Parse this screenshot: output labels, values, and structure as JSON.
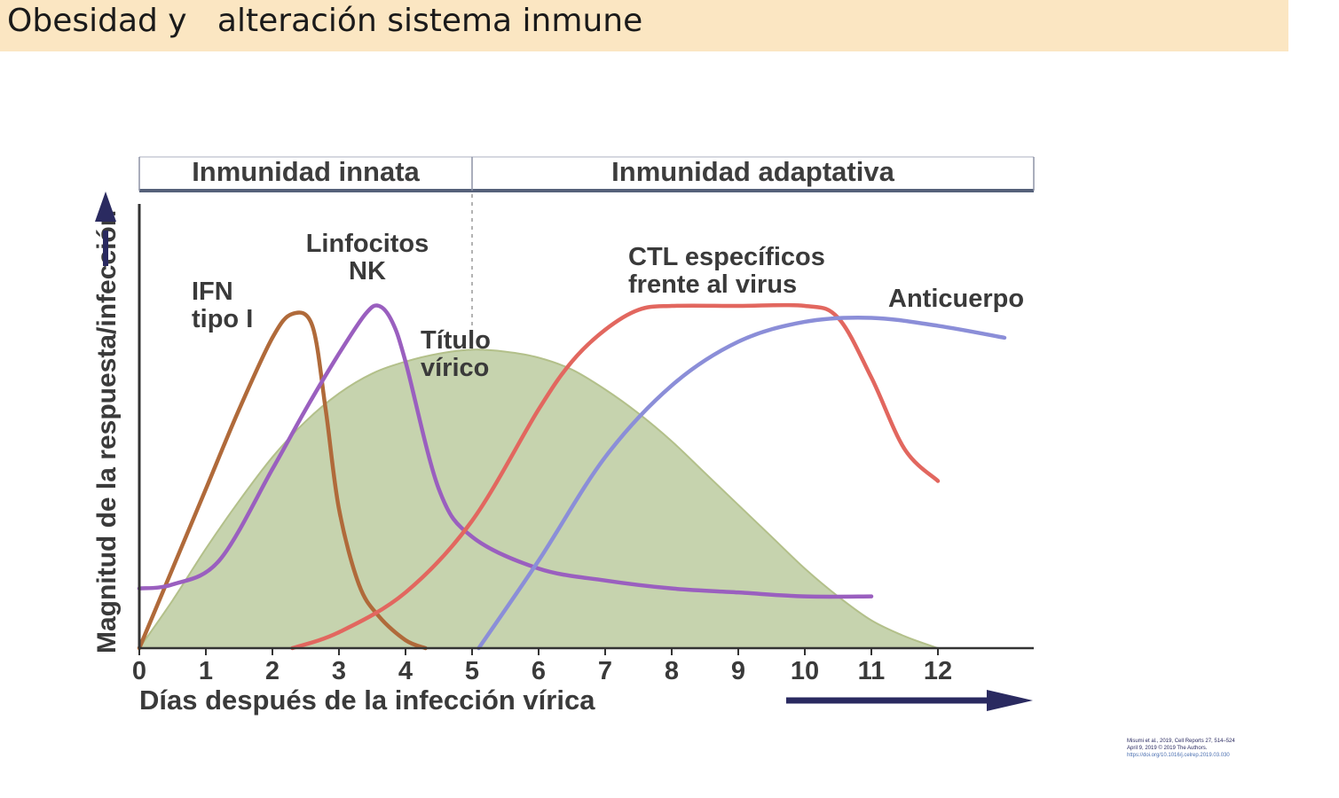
{
  "slide": {
    "title": "Obesidad y   alteración sistema inmune"
  },
  "citation": {
    "line1": "Misumi et al., 2019, Cell Reports 27, 514–524",
    "line2": "April 9, 2019 © 2019 The Authors.",
    "line3": "https://doi.org/10.1016/j.celrep.2019.03.030"
  },
  "chart_data": {
    "type": "line",
    "title": "",
    "xlabel": "Días después de la infección vírica",
    "ylabel": "Magnitud de la respuesta/infección",
    "xlim": [
      0,
      13.5
    ],
    "ylim": [
      0,
      1
    ],
    "x_ticks": [
      0,
      1,
      2,
      3,
      4,
      5,
      6,
      7,
      8,
      9,
      10,
      11,
      12
    ],
    "phases": [
      {
        "label": "Inmunidad innata",
        "from": 0,
        "to": 5
      },
      {
        "label": "Inmunidad adaptativa",
        "from": 5,
        "to": 13.5
      }
    ],
    "divider_x": 5,
    "series": [
      {
        "name": "Título vírico",
        "label_lines": [
          "Título",
          "vírico"
        ],
        "style": "area",
        "color": "#c6d3ae",
        "stroke": "#b3c08a",
        "x": [
          0,
          0.5,
          1,
          1.5,
          2,
          2.5,
          3,
          3.5,
          4,
          4.5,
          5,
          5.5,
          6,
          6.5,
          7,
          7.5,
          8,
          8.5,
          9,
          9.5,
          10,
          10.5,
          11,
          11.5,
          12
        ],
        "values": [
          0,
          0.12,
          0.25,
          0.37,
          0.48,
          0.57,
          0.64,
          0.69,
          0.72,
          0.74,
          0.75,
          0.745,
          0.73,
          0.7,
          0.65,
          0.59,
          0.52,
          0.44,
          0.36,
          0.28,
          0.2,
          0.13,
          0.07,
          0.03,
          0
        ]
      },
      {
        "name": "IFN tipo I",
        "label_lines": [
          "IFN",
          "tipo I"
        ],
        "style": "line",
        "color": "#b06a3a",
        "x": [
          0,
          0.5,
          1,
          1.5,
          2,
          2.3,
          2.6,
          2.8,
          3,
          3.3,
          3.6,
          4,
          4.3
        ],
        "values": [
          0,
          0.2,
          0.4,
          0.6,
          0.78,
          0.84,
          0.81,
          0.6,
          0.35,
          0.16,
          0.08,
          0.02,
          0
        ]
      },
      {
        "name": "Linfocitos NK",
        "label_lines": [
          "Linfocitos",
          "NK"
        ],
        "style": "line",
        "color": "#9a5fbf",
        "x": [
          0,
          0.5,
          1.2,
          2,
          2.5,
          3,
          3.4,
          3.6,
          3.8,
          4,
          4.5,
          5,
          6,
          7,
          8,
          9,
          10,
          11
        ],
        "values": [
          0.15,
          0.16,
          0.22,
          0.45,
          0.6,
          0.74,
          0.84,
          0.86,
          0.82,
          0.72,
          0.4,
          0.28,
          0.2,
          0.17,
          0.15,
          0.14,
          0.13,
          0.13
        ]
      },
      {
        "name": "CTL específicos frente al virus",
        "label_lines": [
          "CTL específicos",
          "frente al virus"
        ],
        "style": "line",
        "color": "#e2675f",
        "x": [
          2.3,
          3,
          4,
          5,
          6,
          6.5,
          7,
          7.5,
          8,
          9,
          10,
          10.5,
          11,
          11.5,
          12
        ],
        "values": [
          0,
          0.04,
          0.14,
          0.32,
          0.6,
          0.72,
          0.8,
          0.85,
          0.86,
          0.86,
          0.86,
          0.83,
          0.68,
          0.5,
          0.42
        ]
      },
      {
        "name": "Anticuerpo",
        "label_lines": [
          "Anticuerpo"
        ],
        "style": "line",
        "color": "#8b8ed8",
        "x": [
          5.1,
          6,
          7,
          8,
          9,
          10,
          11,
          12,
          13
        ],
        "values": [
          0,
          0.22,
          0.48,
          0.66,
          0.77,
          0.82,
          0.83,
          0.81,
          0.78
        ]
      }
    ],
    "grid": false,
    "legend": "labels placed next to curves"
  }
}
